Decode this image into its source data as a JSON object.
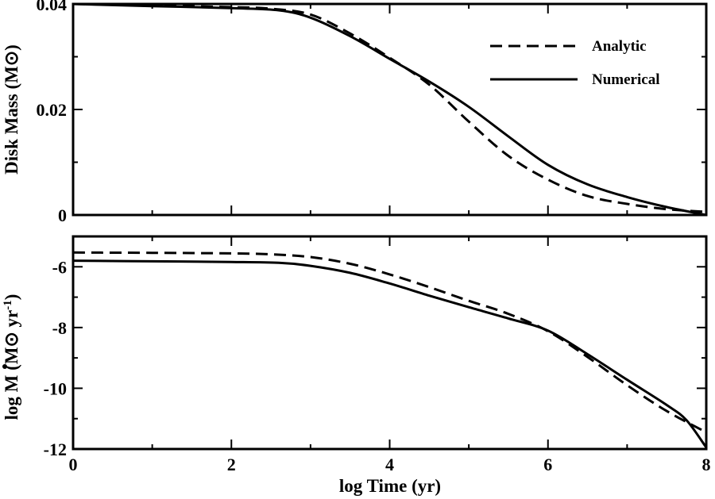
{
  "chart_data": [
    {
      "type": "line",
      "panel": "top",
      "ylabel": "Disk Mass (M",
      "ylabel_unit_symbol": "⊙",
      "ylabel_close": ")",
      "xlim": [
        0,
        8
      ],
      "ylim": [
        0,
        0.04
      ],
      "yticks": [
        0,
        0.02,
        0.04
      ],
      "ytick_labels": [
        "0",
        "0.02",
        "0.04"
      ],
      "xticks": [
        0,
        2,
        4,
        6,
        8
      ],
      "xtick_labels_shown": false,
      "legend": {
        "placement": "top-right",
        "entries": [
          {
            "label": "Analytic",
            "style": "dashed"
          },
          {
            "label": "Numerical",
            "style": "solid"
          }
        ]
      },
      "series": [
        {
          "name": "Analytic",
          "style": "dashed",
          "x": [
            0,
            1,
            2,
            2.5,
            3,
            3.5,
            4,
            4.5,
            5,
            5.5,
            6,
            6.5,
            7,
            7.5,
            8
          ],
          "y": [
            0.04,
            0.0397,
            0.0394,
            0.0391,
            0.038,
            0.0344,
            0.0298,
            0.0247,
            0.0177,
            0.0112,
            0.0067,
            0.0036,
            0.0021,
            0.0011,
            0.0006
          ]
        },
        {
          "name": "Numerical",
          "style": "solid",
          "x": [
            0,
            1,
            2,
            2.6,
            3,
            3.5,
            4,
            4.5,
            5,
            5.5,
            6,
            6.5,
            7,
            7.5,
            8
          ],
          "y": [
            0.04,
            0.0396,
            0.0392,
            0.0388,
            0.0374,
            0.0339,
            0.0296,
            0.0253,
            0.0205,
            0.0149,
            0.0095,
            0.0058,
            0.0034,
            0.0015,
            0.0
          ]
        }
      ]
    },
    {
      "type": "line",
      "panel": "bottom",
      "ylabel_prefix": "log ",
      "ylabel_symbol": "M",
      "ylabel_mid": " (M",
      "ylabel_unit_symbol": "⊙",
      "ylabel_unit": " yr",
      "ylabel_exp": "-1",
      "ylabel_close": ")",
      "xlabel": "log Time (yr)",
      "xlim": [
        0,
        8
      ],
      "ylim": [
        -12,
        -5
      ],
      "yticks": [
        -12,
        -10,
        -8,
        -6
      ],
      "ytick_labels": [
        "-12",
        "-10",
        "-8",
        "-6"
      ],
      "xticks": [
        0,
        2,
        4,
        6,
        8
      ],
      "xtick_labels": [
        "0",
        "2",
        "4",
        "6",
        "8"
      ],
      "series": [
        {
          "name": "Analytic",
          "style": "dashed",
          "x": [
            0,
            1,
            2,
            2.5,
            3,
            3.5,
            4,
            4.5,
            5,
            5.5,
            6,
            6.5,
            7,
            7.5,
            8
          ],
          "y": [
            -5.53,
            -5.54,
            -5.56,
            -5.59,
            -5.68,
            -5.9,
            -6.25,
            -6.67,
            -7.12,
            -7.55,
            -8.12,
            -8.97,
            -9.9,
            -10.75,
            -11.45
          ]
        },
        {
          "name": "Numerical",
          "style": "solid",
          "x": [
            0,
            1,
            2,
            2.6,
            3,
            3.5,
            4,
            4.5,
            5,
            5.5,
            6,
            6.5,
            7,
            7.5,
            7.75,
            8
          ],
          "y": [
            -5.8,
            -5.82,
            -5.84,
            -5.87,
            -5.97,
            -6.2,
            -6.55,
            -6.95,
            -7.33,
            -7.7,
            -8.1,
            -8.88,
            -9.72,
            -10.55,
            -11.05,
            -11.95
          ]
        }
      ]
    }
  ]
}
